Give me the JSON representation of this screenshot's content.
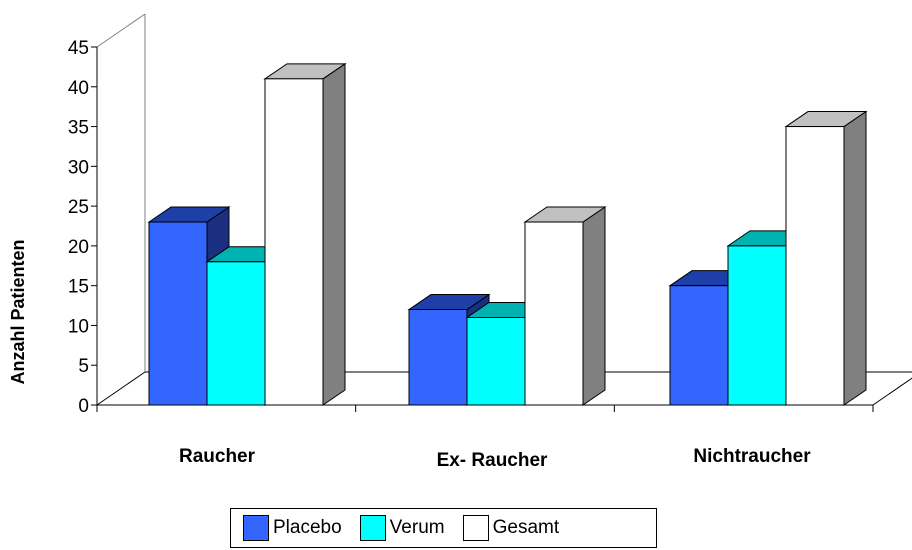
{
  "chart_data": {
    "type": "bar",
    "categories": [
      "Raucher",
      "Ex- Raucher",
      "Nichtraucher"
    ],
    "series": [
      {
        "name": "Placebo",
        "values": [
          23,
          12,
          15
        ],
        "color": "#3366FF",
        "top_color": "#1F3FA8",
        "side_color": "#1A2F80"
      },
      {
        "name": "Verum",
        "values": [
          18,
          11,
          20
        ],
        "color": "#00FFFF",
        "top_color": "#00B3B3",
        "side_color": "#008080"
      },
      {
        "name": "Gesamt",
        "values": [
          41,
          23,
          35
        ],
        "color": "#FFFFFF",
        "top_color": "#C0C0C0",
        "side_color": "#808080"
      }
    ],
    "ylabel": "Anzahl Patienten",
    "xlabel": "",
    "ylim": [
      0,
      45
    ],
    "yticks": [
      0,
      5,
      10,
      15,
      20,
      25,
      30,
      35,
      40,
      45
    ],
    "legend_position": "bottom",
    "grid": false,
    "style": "3d-clustered-column"
  }
}
